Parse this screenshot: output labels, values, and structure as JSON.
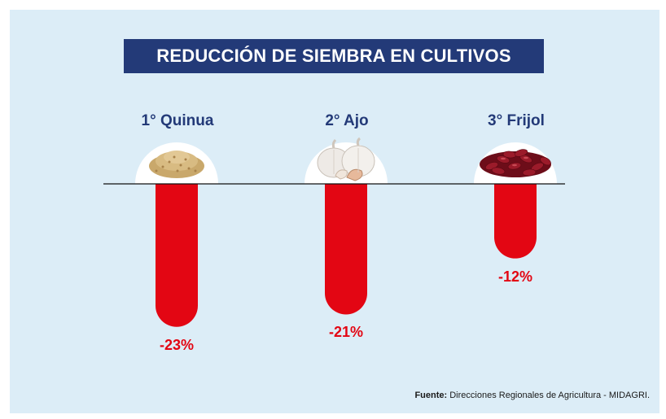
{
  "title": "REDUCCIÓN DE SIEMBRA EN CULTIVOS",
  "chart_data": {
    "type": "bar",
    "orientation": "downward",
    "title": "REDUCCIÓN DE SIEMBRA EN CULTIVOS",
    "categories": [
      "1° Quinua",
      "2° Ajo",
      "3° Frijol"
    ],
    "values": [
      -23,
      -21,
      -12
    ],
    "value_labels": [
      "-23%",
      "-21%",
      "-12%"
    ],
    "unit": "%",
    "ylim": [
      -25,
      0
    ],
    "bar_color": "#e30613"
  },
  "icons": [
    "quinoa-grain-icon",
    "garlic-icon",
    "red-bean-icon"
  ],
  "source": {
    "label": "Fuente:",
    "text": "Direcciones Regionales de Agricultura - MIDAGRI."
  },
  "colors": {
    "background": "#dcedf7",
    "title_bg": "#233a78",
    "title_text": "#ffffff",
    "label": "#233a78",
    "bar": "#e30613"
  }
}
